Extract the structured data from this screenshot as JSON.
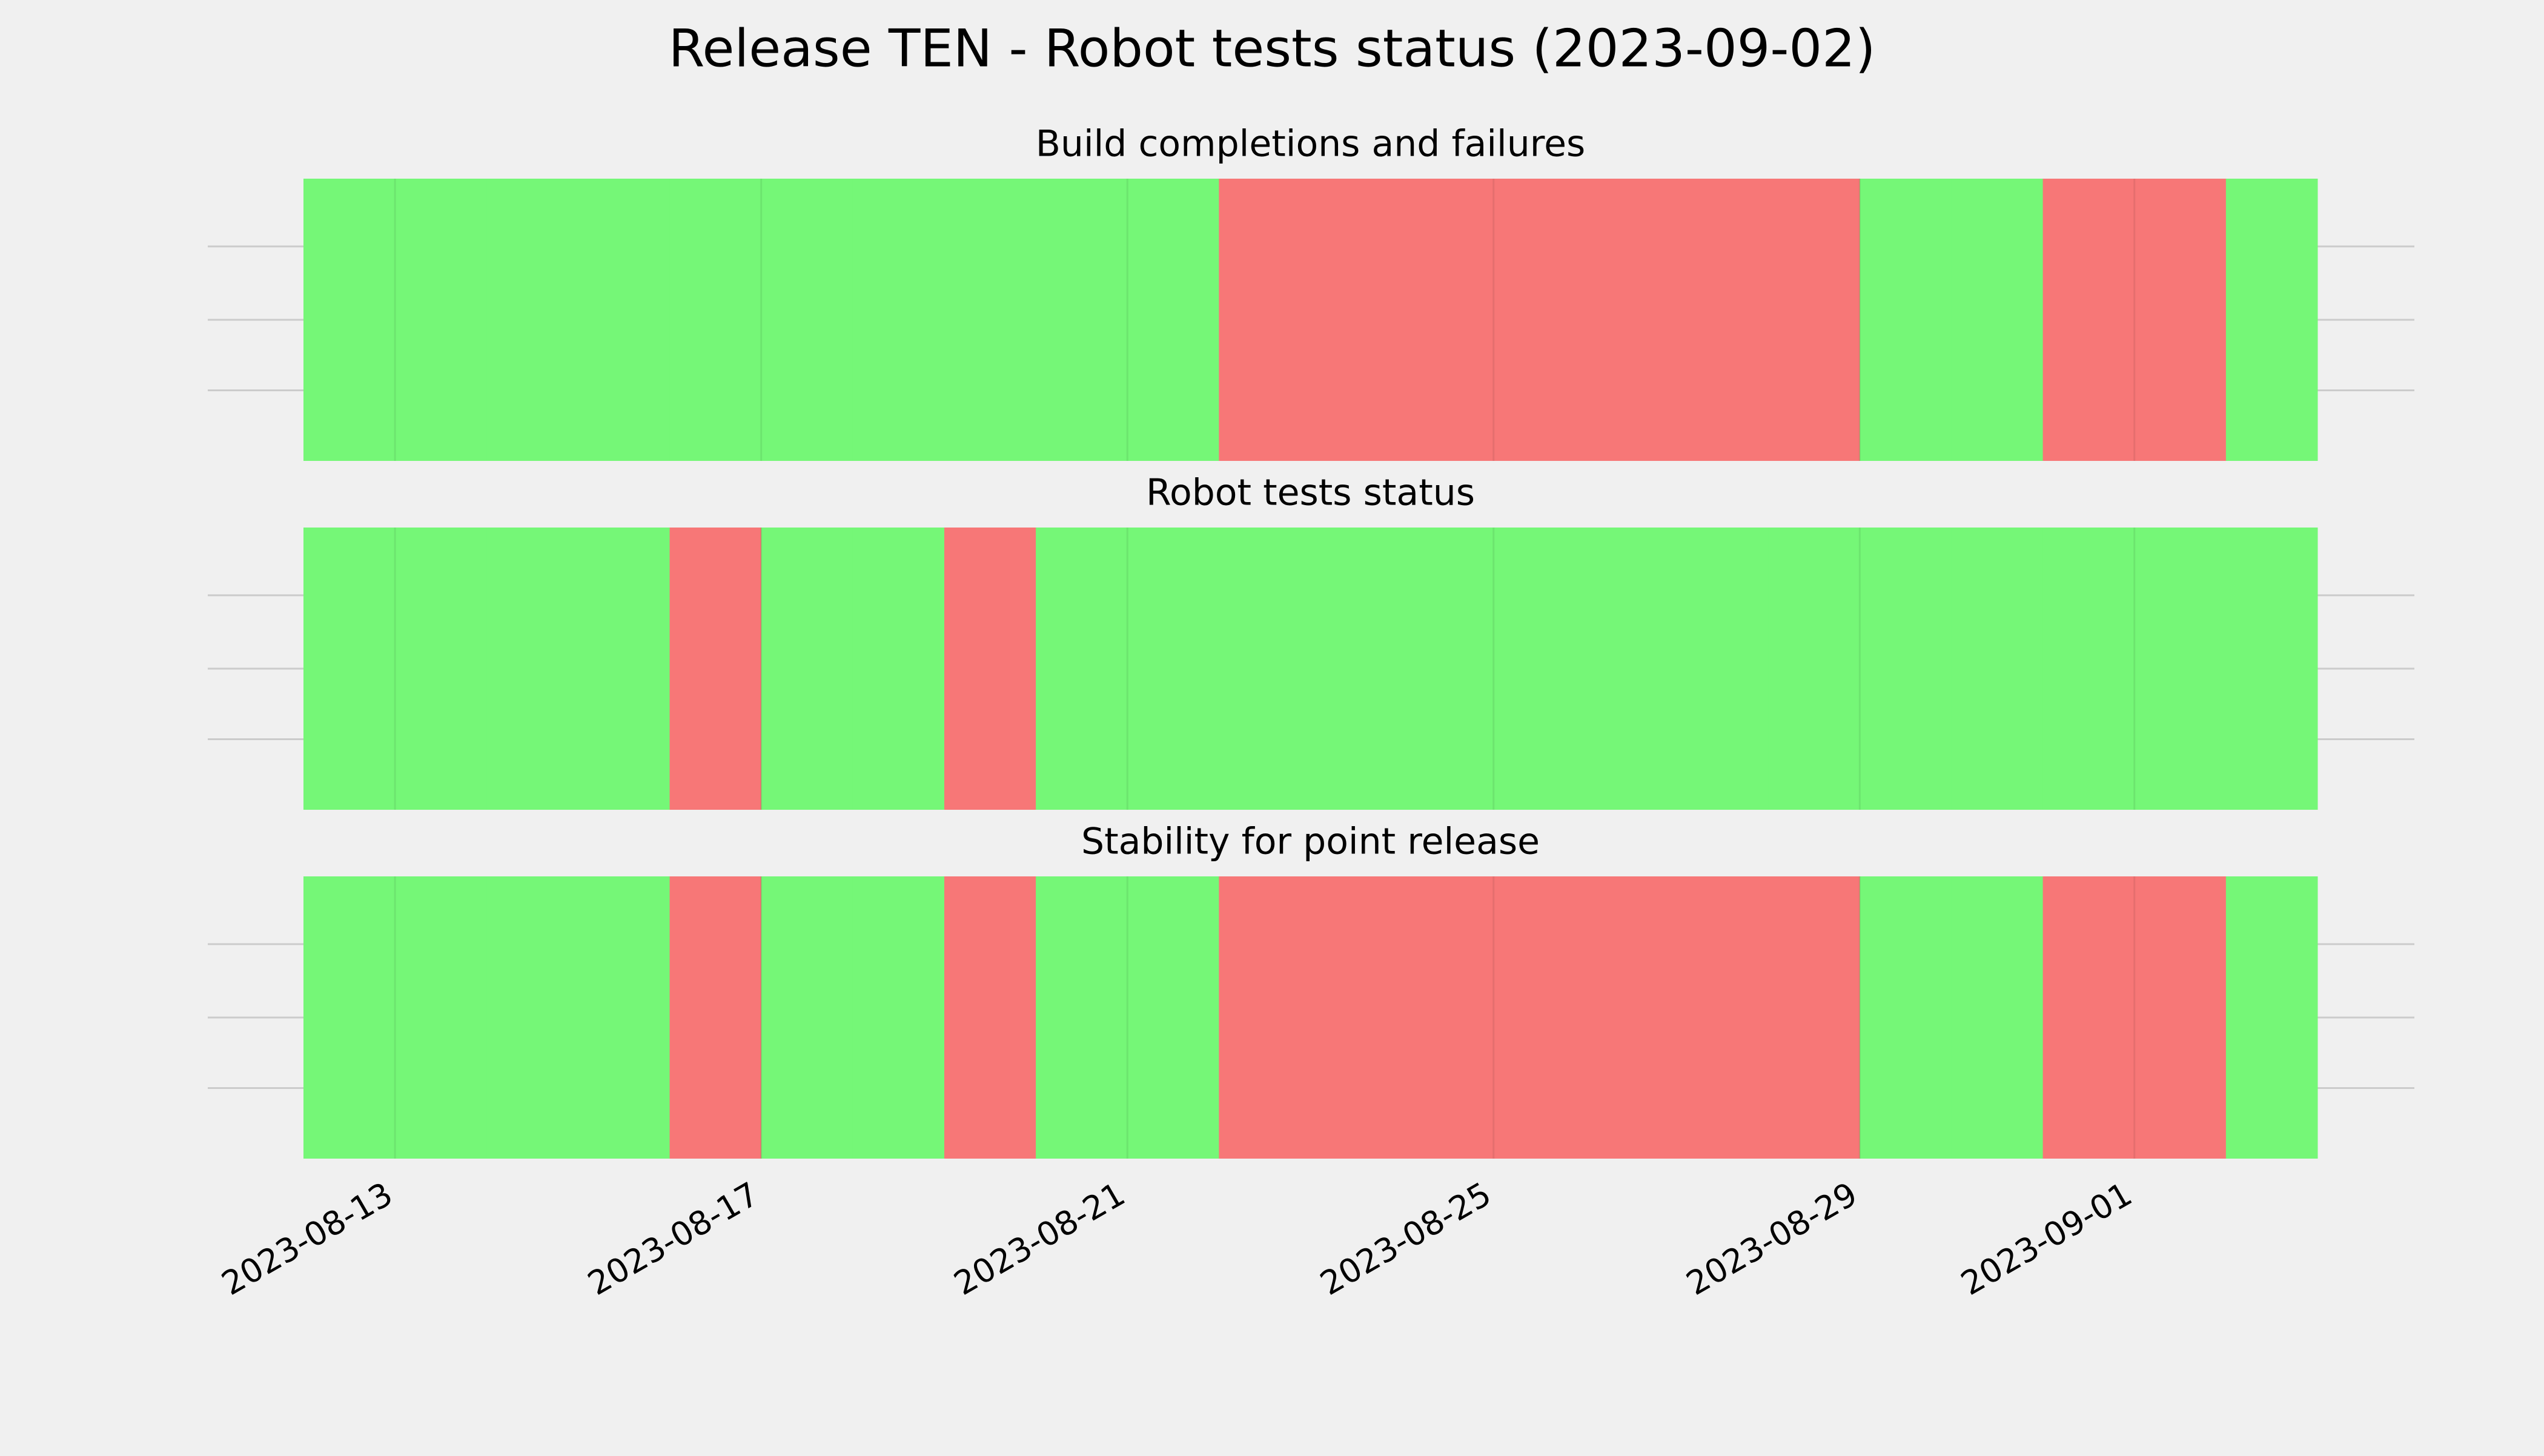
{
  "title": "Release TEN - Robot tests status (2023-09-02)",
  "chart_data": [
    {
      "type": "timeline",
      "title": "Build completions and failures",
      "x": [
        "2023-08-12",
        "2023-08-13",
        "2023-08-14",
        "2023-08-15",
        "2023-08-16",
        "2023-08-17",
        "2023-08-18",
        "2023-08-19",
        "2023-08-20",
        "2023-08-21",
        "2023-08-22",
        "2023-08-23",
        "2023-08-24",
        "2023-08-25",
        "2023-08-26",
        "2023-08-27",
        "2023-08-28",
        "2023-08-29",
        "2023-08-30",
        "2023-08-31",
        "2023-09-01",
        "2023-09-02"
      ],
      "values": [
        1,
        1,
        1,
        1,
        1,
        1,
        1,
        1,
        1,
        1,
        0,
        0,
        0,
        0,
        0,
        0,
        0,
        1,
        1,
        0,
        0,
        1
      ],
      "pass_color": "#75f777",
      "fail_color": "#f77777",
      "xlim": [
        "2023-08-12",
        "2023-09-03"
      ]
    },
    {
      "type": "timeline",
      "title": "Robot tests status",
      "x": [
        "2023-08-12",
        "2023-08-13",
        "2023-08-14",
        "2023-08-15",
        "2023-08-16",
        "2023-08-17",
        "2023-08-18",
        "2023-08-19",
        "2023-08-20",
        "2023-08-21",
        "2023-08-22",
        "2023-08-23",
        "2023-08-24",
        "2023-08-25",
        "2023-08-26",
        "2023-08-27",
        "2023-08-28",
        "2023-08-29",
        "2023-08-30",
        "2023-08-31",
        "2023-09-01",
        "2023-09-02"
      ],
      "values": [
        1,
        1,
        1,
        1,
        0,
        1,
        1,
        0,
        1,
        1,
        1,
        1,
        1,
        1,
        1,
        1,
        1,
        1,
        1,
        1,
        1,
        1
      ],
      "pass_color": "#75f777",
      "fail_color": "#f77777",
      "xlim": [
        "2023-08-12",
        "2023-09-03"
      ]
    },
    {
      "type": "timeline",
      "title": "Stability for point release",
      "x": [
        "2023-08-12",
        "2023-08-13",
        "2023-08-14",
        "2023-08-15",
        "2023-08-16",
        "2023-08-17",
        "2023-08-18",
        "2023-08-19",
        "2023-08-20",
        "2023-08-21",
        "2023-08-22",
        "2023-08-23",
        "2023-08-24",
        "2023-08-25",
        "2023-08-26",
        "2023-08-27",
        "2023-08-28",
        "2023-08-29",
        "2023-08-30",
        "2023-08-31",
        "2023-09-01",
        "2023-09-02"
      ],
      "values": [
        1,
        1,
        1,
        1,
        0,
        1,
        1,
        0,
        1,
        1,
        0,
        0,
        0,
        0,
        0,
        0,
        0,
        1,
        1,
        0,
        0,
        1
      ],
      "pass_color": "#75f777",
      "fail_color": "#f77777",
      "xlim": [
        "2023-08-12",
        "2023-09-03"
      ],
      "xticks": [
        "2023-08-13",
        "2023-08-17",
        "2023-08-21",
        "2023-08-25",
        "2023-08-29",
        "2023-09-01"
      ]
    }
  ]
}
